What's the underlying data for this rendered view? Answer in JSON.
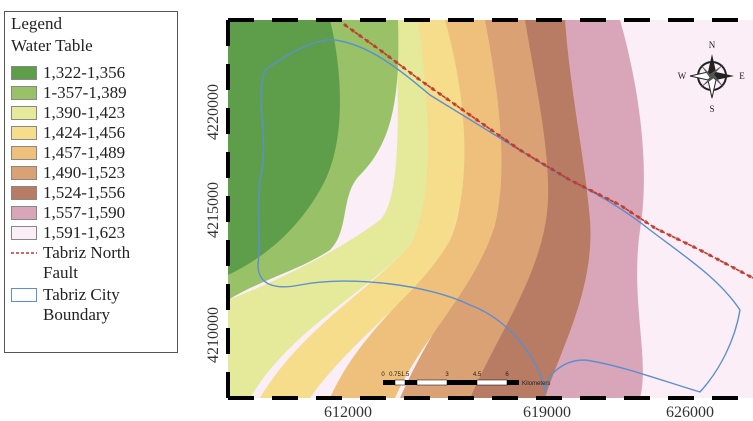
{
  "legend": {
    "title": "Legend",
    "subtitle": "Water Table",
    "classes": [
      {
        "label": "1,322-1,356",
        "color": "#5e9e4a"
      },
      {
        "label": "1-357-1,389",
        "color": "#99c268"
      },
      {
        "label": "1,390-1,423",
        "color": "#e4ea9a"
      },
      {
        "label": "1,424-1,456",
        "color": "#f5dd8b"
      },
      {
        "label": "1,457-1,489",
        "color": "#efc07c"
      },
      {
        "label": "1,490-1,523",
        "color": "#d9a174"
      },
      {
        "label": "1,524-1,556",
        "color": "#b77c63"
      },
      {
        "label": "1,557-1,590",
        "color": "#d9a6b9"
      },
      {
        "label": "1,591-1,623",
        "color": "#fbeef6"
      }
    ],
    "fault_label_1": "Tabriz North",
    "fault_label_2": "Fault",
    "city_label_1": "Tabriz City",
    "city_label_2": "Boundary",
    "fault_color": "#c0392b",
    "city_color": "#5b8fd1"
  },
  "axes": {
    "y_ticks": [
      "4220000",
      "4215000",
      "4210000"
    ],
    "x_ticks": [
      "612000",
      "619000",
      "626000"
    ]
  },
  "compass": {
    "n": "N",
    "s": "S",
    "e": "E",
    "w": "W"
  },
  "scalebar": {
    "labels": [
      "0",
      "0.75",
      "1.5",
      "3",
      "4.5",
      "6"
    ],
    "unit": "Kilometers"
  }
}
